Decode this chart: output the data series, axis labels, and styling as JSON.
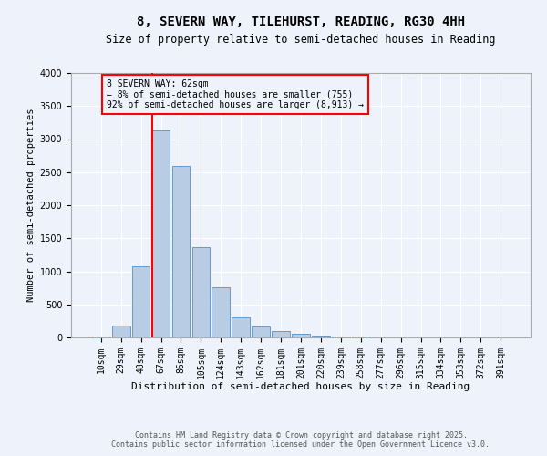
{
  "title1": "8, SEVERN WAY, TILEHURST, READING, RG30 4HH",
  "title2": "Size of property relative to semi-detached houses in Reading",
  "xlabel": "Distribution of semi-detached houses by size in Reading",
  "ylabel": "Number of semi-detached properties",
  "categories": [
    "10sqm",
    "29sqm",
    "48sqm",
    "67sqm",
    "86sqm",
    "105sqm",
    "124sqm",
    "143sqm",
    "162sqm",
    "181sqm",
    "201sqm",
    "220sqm",
    "239sqm",
    "258sqm",
    "277sqm",
    "296sqm",
    "315sqm",
    "334sqm",
    "353sqm",
    "372sqm",
    "391sqm"
  ],
  "values": [
    20,
    180,
    1080,
    3130,
    2600,
    1360,
    760,
    310,
    160,
    90,
    50,
    25,
    15,
    8,
    5,
    5,
    3,
    3,
    2,
    2,
    2
  ],
  "bar_color": "#b8cce4",
  "bar_edge_color": "#6699cc",
  "property_line_index": 3,
  "property_line_color": "red",
  "annotation_title": "8 SEVERN WAY: 62sqm",
  "annotation_line1": "← 8% of semi-detached houses are smaller (755)",
  "annotation_line2": "92% of semi-detached houses are larger (8,913) →",
  "annotation_box_color": "red",
  "ylim": [
    0,
    4000
  ],
  "yticks": [
    0,
    500,
    1000,
    1500,
    2000,
    2500,
    3000,
    3500,
    4000
  ],
  "footnote1": "Contains HM Land Registry data © Crown copyright and database right 2025.",
  "footnote2": "Contains public sector information licensed under the Open Government Licence v3.0.",
  "bg_color": "#eef2fb",
  "grid_color": "#ffffff",
  "title1_fontsize": 10,
  "title2_fontsize": 8.5,
  "xlabel_fontsize": 8,
  "ylabel_fontsize": 7.5,
  "tick_fontsize": 7,
  "annot_fontsize": 7,
  "footnote_fontsize": 6
}
